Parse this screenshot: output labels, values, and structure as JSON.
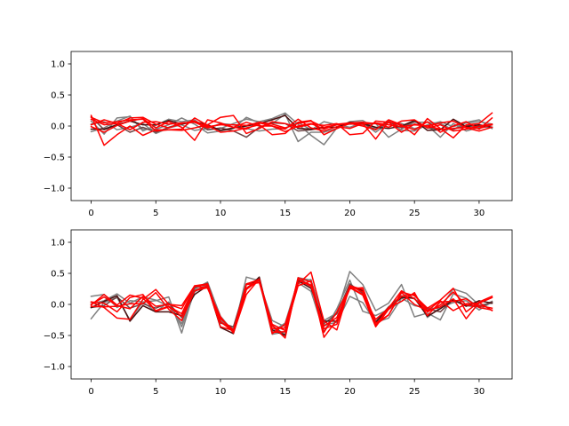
{
  "chart_data": [
    {
      "type": "line",
      "title": "",
      "xlabel": "",
      "ylabel": "",
      "xlim": [
        -1.55,
        32.55
      ],
      "ylim": [
        -1.2,
        1.2
      ],
      "xticks": [
        0,
        5,
        10,
        15,
        20,
        25,
        30
      ],
      "yticks": [
        -1.0,
        -0.5,
        0.0,
        0.5,
        1.0
      ],
      "ytick_labels": [
        "−1.0",
        "−0.5",
        "0.0",
        "0.5",
        "1.0"
      ],
      "grid": false,
      "series": [
        {
          "color": "#808080",
          "values": [
            0.08,
            -0.13,
            0.13,
            0.15,
            -0.05,
            -0.05,
            0.02,
            0.13,
            0.03,
            -0.11,
            -0.08,
            -0.04,
            0.14,
            0.05,
            0.04,
            0.19,
            -0.25,
            -0.1,
            -0.1,
            -0.04,
            0.04,
            0.02,
            0.04,
            -0.18,
            -0.05,
            0.06,
            0.06,
            0.04,
            -0.06,
            0.06,
            0.1,
            -0.04
          ]
        },
        {
          "color": "#808080",
          "values": [
            -0.09,
            -0.03,
            0.08,
            0.16,
            -0.08,
            0.01,
            0.11,
            0.07,
            0.1,
            -0.06,
            -0.04,
            0.04,
            0.11,
            0.07,
            0.12,
            0.21,
            0.03,
            -0.15,
            -0.3,
            -0.03,
            0.07,
            0.09,
            -0.04,
            0.09,
            -0.07,
            -0.08,
            0.02,
            0.07,
            -0.01,
            0.05,
            0.07,
            0.03
          ]
        },
        {
          "color": "#808080",
          "values": [
            0.03,
            0.07,
            -0.06,
            -0.02,
            0.04,
            -0.12,
            -0.03,
            0.02,
            -0.07,
            -0.04,
            0.04,
            0.02,
            -0.04,
            -0.08,
            -0.05,
            -0.04,
            0.06,
            -0.06,
            0.07,
            0.02,
            -0.02,
            0.06,
            -0.1,
            0.06,
            0.04,
            -0.04,
            0.01,
            -0.18,
            0.04,
            -0.08,
            -0.02,
            -0.02
          ]
        },
        {
          "color": "#6e4646",
          "values": [
            0.15,
            -0.06,
            0.02,
            -0.1,
            -0.02,
            -0.1,
            -0.02,
            0.04,
            0.08,
            -0.06,
            -0.03,
            -0.08,
            -0.18,
            -0.02,
            0.05,
            0.04,
            -0.08,
            -0.06,
            -0.03,
            0.02,
            0.03,
            0.04,
            -0.06,
            0.07,
            -0.03,
            0.08,
            -0.03,
            -0.05,
            -0.05,
            0.01,
            -0.01,
            0.02
          ]
        },
        {
          "color": "#4a1010",
          "values": [
            -0.05,
            -0.05,
            0.02,
            0.08,
            0.02,
            0.02,
            0.09,
            0.03,
            0.07,
            0.02,
            -0.07,
            -0.03,
            0.0,
            0.04,
            0.1,
            0.17,
            -0.04,
            -0.05,
            -0.02,
            -0.02,
            0.06,
            0.04,
            -0.02,
            -0.04,
            0.0,
            0.09,
            -0.07,
            -0.06,
            0.11,
            -0.01,
            0.02,
            -0.02
          ]
        },
        {
          "color": "#ff0000",
          "values": [
            0.17,
            -0.31,
            -0.14,
            0.0,
            -0.15,
            -0.06,
            -0.06,
            -0.05,
            0.13,
            0.01,
            -0.1,
            -0.08,
            -0.03,
            0.02,
            -0.14,
            -0.12,
            0.06,
            0.09,
            -0.14,
            -0.04,
            0.04,
            0.0,
            -0.06,
            0.1,
            0.02,
            -0.14,
            0.12,
            -0.04,
            -0.19,
            0.02,
            0.04,
            0.21
          ]
        },
        {
          "color": "#ff0000",
          "values": [
            0.14,
            0.05,
            0.07,
            0.1,
            0.11,
            -0.08,
            -0.06,
            -0.07,
            -0.03,
            0.02,
            0.14,
            0.17,
            -0.12,
            -0.04,
            0.07,
            0.04,
            -0.02,
            0.03,
            0.01,
            0.04,
            -0.14,
            -0.12,
            0.08,
            0.06,
            -0.1,
            0.03,
            0.0,
            0.05,
            0.08,
            -0.03,
            -0.08,
            -0.02
          ]
        },
        {
          "color": "#ff0000",
          "values": [
            -0.01,
            -0.1,
            0.01,
            0.08,
            0.12,
            -0.03,
            0.07,
            -0.02,
            -0.23,
            0.1,
            0.05,
            -0.02,
            -0.05,
            0.05,
            0.0,
            -0.05,
            0.11,
            -0.03,
            -0.08,
            -0.01,
            -0.04,
            0.04,
            -0.21,
            0.07,
            0.01,
            -0.06,
            0.07,
            -0.1,
            0.0,
            0.07,
            -0.05,
            0.13
          ]
        },
        {
          "color": "#ff0000",
          "values": [
            0.02,
            0.1,
            0.04,
            -0.06,
            0.06,
            0.07,
            0.03,
            0.05,
            0.06,
            -0.03,
            0.03,
            -0.02,
            0.06,
            0.0,
            0.0,
            -0.09,
            0.0,
            0.04,
            -0.05,
            0.03,
            0.05,
            0.06,
            0.04,
            -0.02,
            0.08,
            0.1,
            -0.03,
            0.02,
            -0.08,
            -0.05,
            0.0,
            0.03
          ]
        },
        {
          "color": "#ff0000",
          "values": [
            0.11,
            0.02,
            0.04,
            0.13,
            0.14,
            0.03,
            -0.03,
            0.04,
            0.08,
            -0.01,
            0.02,
            0.02,
            0.01,
            0.06,
            0.03,
            -0.03,
            0.04,
            0.08,
            -0.02,
            0.02,
            0.04,
            0.03,
            0.05,
            0.02,
            -0.01,
            0.02,
            0.0,
            -0.05,
            -0.04,
            -0.02,
            -0.04,
            0.02
          ]
        }
      ]
    },
    {
      "type": "line",
      "title": "",
      "xlabel": "",
      "ylabel": "",
      "xlim": [
        -1.55,
        32.55
      ],
      "ylim": [
        -1.2,
        1.2
      ],
      "xticks": [
        0,
        5,
        10,
        15,
        20,
        25,
        30
      ],
      "yticks": [
        -1.0,
        -0.5,
        0.0,
        0.5,
        1.0
      ],
      "ytick_labels": [
        "−1.0",
        "−0.5",
        "0.0",
        "0.5",
        "1.0"
      ],
      "grid": false,
      "series": [
        {
          "color": "#808080",
          "values": [
            0.13,
            0.16,
            -0.05,
            0.06,
            0.04,
            0.06,
            0.12,
            -0.46,
            0.25,
            0.36,
            -0.2,
            -0.45,
            0.44,
            0.38,
            -0.48,
            -0.44,
            0.43,
            0.39,
            -0.26,
            -0.14,
            0.53,
            0.32,
            -0.1,
            0.02,
            0.32,
            -0.2,
            -0.14,
            -0.25,
            0.17,
            0.1,
            -0.05,
            0.05
          ]
        },
        {
          "color": "#808080",
          "values": [
            -0.23,
            0.03,
            0.11,
            -0.25,
            0.04,
            -0.12,
            0.04,
            -0.36,
            0.2,
            0.34,
            -0.19,
            -0.44,
            0.26,
            0.43,
            -0.44,
            -0.3,
            0.38,
            0.4,
            -0.33,
            -0.29,
            0.13,
            0.03,
            -0.29,
            -0.22,
            0.1,
            -0.02,
            -0.06,
            -0.06,
            0.25,
            0.18,
            -0.01,
            0.02
          ]
        },
        {
          "color": "#808080",
          "values": [
            0.01,
            0.06,
            0.17,
            0.02,
            0.12,
            0.07,
            -0.03,
            -0.31,
            0.23,
            0.31,
            -0.26,
            -0.39,
            0.32,
            0.36,
            -0.26,
            -0.36,
            0.35,
            0.21,
            -0.44,
            -0.07,
            0.39,
            -0.11,
            -0.18,
            -0.08,
            0.05,
            0.18,
            -0.21,
            -0.05,
            0.03,
            0.06,
            -0.09,
            0.04
          ]
        },
        {
          "color": "#6e4646",
          "values": [
            -0.05,
            -0.02,
            0.12,
            -0.06,
            0.01,
            -0.06,
            0.02,
            -0.21,
            0.27,
            0.34,
            -0.3,
            -0.36,
            0.33,
            0.38,
            -0.34,
            -0.49,
            0.41,
            0.31,
            -0.31,
            -0.15,
            0.33,
            0.18,
            -0.28,
            -0.04,
            0.14,
            0.09,
            -0.07,
            -0.12,
            0.08,
            -0.02,
            -0.04,
            0.04
          ]
        },
        {
          "color": "#4a1010",
          "values": [
            -0.05,
            0.05,
            0.14,
            -0.27,
            -0.02,
            -0.12,
            -0.12,
            -0.18,
            0.16,
            0.3,
            -0.37,
            -0.47,
            0.24,
            0.44,
            -0.41,
            -0.5,
            0.38,
            0.26,
            -0.27,
            -0.27,
            0.3,
            0.22,
            -0.29,
            -0.06,
            0.11,
            0.1,
            -0.19,
            -0.07,
            0.07,
            -0.03,
            0.06,
            0.02
          ]
        },
        {
          "color": "#ff0000",
          "values": [
            0.04,
            -0.05,
            -0.22,
            -0.24,
            0.08,
            0.24,
            0.0,
            -0.07,
            0.3,
            0.26,
            -0.2,
            -0.46,
            0.16,
            0.41,
            -0.45,
            -0.44,
            0.43,
            0.36,
            -0.53,
            -0.25,
            0.25,
            0.27,
            -0.3,
            -0.17,
            0.19,
            0.0,
            -0.1,
            -0.04,
            0.09,
            -0.23,
            0.03,
            -0.1
          ]
        },
        {
          "color": "#ff0000",
          "values": [
            -0.01,
            0.16,
            -0.01,
            0.15,
            0.1,
            -0.1,
            -0.03,
            -0.15,
            0.29,
            0.32,
            -0.28,
            -0.42,
            0.26,
            0.4,
            -0.47,
            -0.32,
            0.33,
            0.52,
            -0.27,
            -0.41,
            0.3,
            0.24,
            -0.33,
            -0.17,
            0.2,
            0.14,
            -0.06,
            0.07,
            0.26,
            -0.12,
            0.04,
            0.13
          ]
        },
        {
          "color": "#ff0000",
          "values": [
            0.04,
            0.02,
            -0.12,
            0.11,
            0.16,
            -0.11,
            -0.04,
            -0.19,
            0.22,
            0.27,
            -0.23,
            -0.41,
            0.32,
            0.35,
            -0.34,
            -0.54,
            0.4,
            0.31,
            -0.45,
            -0.12,
            0.27,
            0.15,
            -0.36,
            -0.08,
            0.13,
            0.16,
            -0.1,
            0.06,
            -0.1,
            0.01,
            0.02,
            0.11
          ]
        },
        {
          "color": "#ff0000",
          "values": [
            -0.03,
            -0.04,
            -0.03,
            0.01,
            0.01,
            0.19,
            -0.08,
            -0.26,
            0.22,
            0.3,
            -0.36,
            -0.42,
            0.33,
            0.4,
            -0.39,
            -0.38,
            0.4,
            0.29,
            -0.35,
            -0.21,
            0.28,
            0.16,
            -0.24,
            -0.06,
            0.22,
            0.09,
            -0.12,
            -0.01,
            0.2,
            -0.01,
            -0.02,
            -0.06
          ]
        },
        {
          "color": "#ff0000",
          "values": [
            0.0,
            0.12,
            -0.02,
            -0.07,
            0.13,
            -0.03,
            0.0,
            -0.02,
            0.3,
            0.33,
            -0.28,
            -0.44,
            0.24,
            0.39,
            -0.32,
            -0.42,
            0.3,
            0.38,
            -0.39,
            -0.32,
            0.3,
            0.2,
            -0.34,
            -0.05,
            0.05,
            0.19,
            -0.18,
            0.04,
            0.05,
            0.09,
            -0.05,
            -0.09
          ]
        }
      ]
    }
  ]
}
